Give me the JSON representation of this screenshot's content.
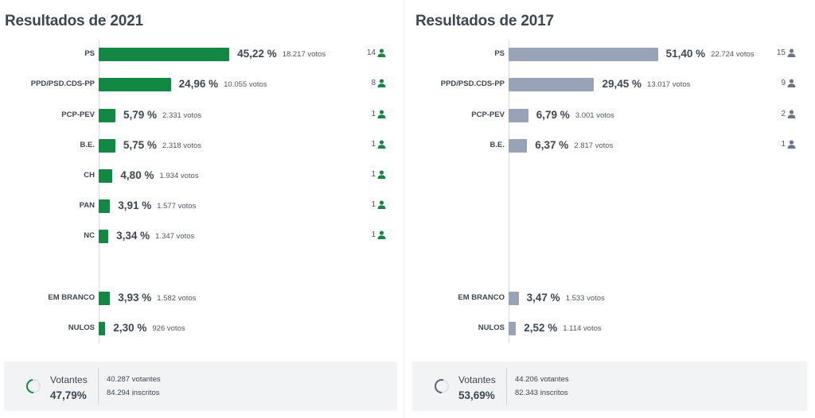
{
  "colors": {
    "accent_2021": "#138744",
    "bar_2017": "#98a3b7",
    "text": "#3d4651"
  },
  "icons": {
    "seats": "user-icon",
    "turnout": "spinner-icon"
  },
  "panels": [
    {
      "id": "p21",
      "title": "Resultados de 2021",
      "turnout": {
        "label": "Votantes",
        "pct": "47,79%",
        "voters": "40.287 votantes",
        "registered": "84.294 inscritos",
        "fraction": 0.4779
      }
    },
    {
      "id": "p17",
      "title": "Resultados de 2017",
      "turnout": {
        "label": "Votantes",
        "pct": "53,69%",
        "voters": "44.206 votantes",
        "registered": "82.343 inscritos",
        "fraction": 0.5369
      }
    }
  ],
  "chart_data": [
    {
      "type": "bar",
      "title": "Resultados de 2021",
      "orientation": "horizontal",
      "categories": [
        "PS",
        "PPD/PSD.CDS-PP",
        "PCP-PEV",
        "B.E.",
        "CH",
        "PAN",
        "NC",
        "EM BRANCO",
        "NULOS"
      ],
      "values": [
        45.22,
        24.96,
        5.79,
        5.75,
        4.8,
        3.91,
        3.34,
        3.93,
        2.3
      ],
      "value_labels": [
        "45,22 %",
        "24,96 %",
        "5,79 %",
        "5,75 %",
        "4,80 %",
        "3,91 %",
        "3,34 %",
        "3,93 %",
        "2,30 %"
      ],
      "votes": [
        "18.217 votos",
        "10.055 votos",
        "2.331 votos",
        "2.318 votos",
        "1.934 votos",
        "1.577 votos",
        "1.347 votos",
        "1.582 votos",
        "926 votos"
      ],
      "seats": [
        "14",
        "8",
        "1",
        "1",
        "1",
        "1",
        "1",
        null,
        null
      ]
    },
    {
      "type": "bar",
      "title": "Resultados de 2017",
      "orientation": "horizontal",
      "categories": [
        "PS",
        "PPD/PSD.CDS-PP",
        "PCP-PEV",
        "B.E.",
        "EM BRANCO",
        "NULOS"
      ],
      "values": [
        51.4,
        29.45,
        6.79,
        6.37,
        3.47,
        2.52
      ],
      "value_labels": [
        "51,40 %",
        "29,45 %",
        "6,79 %",
        "6,37 %",
        "3,47 %",
        "2,52 %"
      ],
      "votes": [
        "22.724 votos",
        "13.017 votos",
        "3.001 votos",
        "2.817 votos",
        "1.533 votos",
        "1.114 votos"
      ],
      "seats": [
        "15",
        "9",
        "2",
        "1",
        null,
        null
      ]
    }
  ]
}
